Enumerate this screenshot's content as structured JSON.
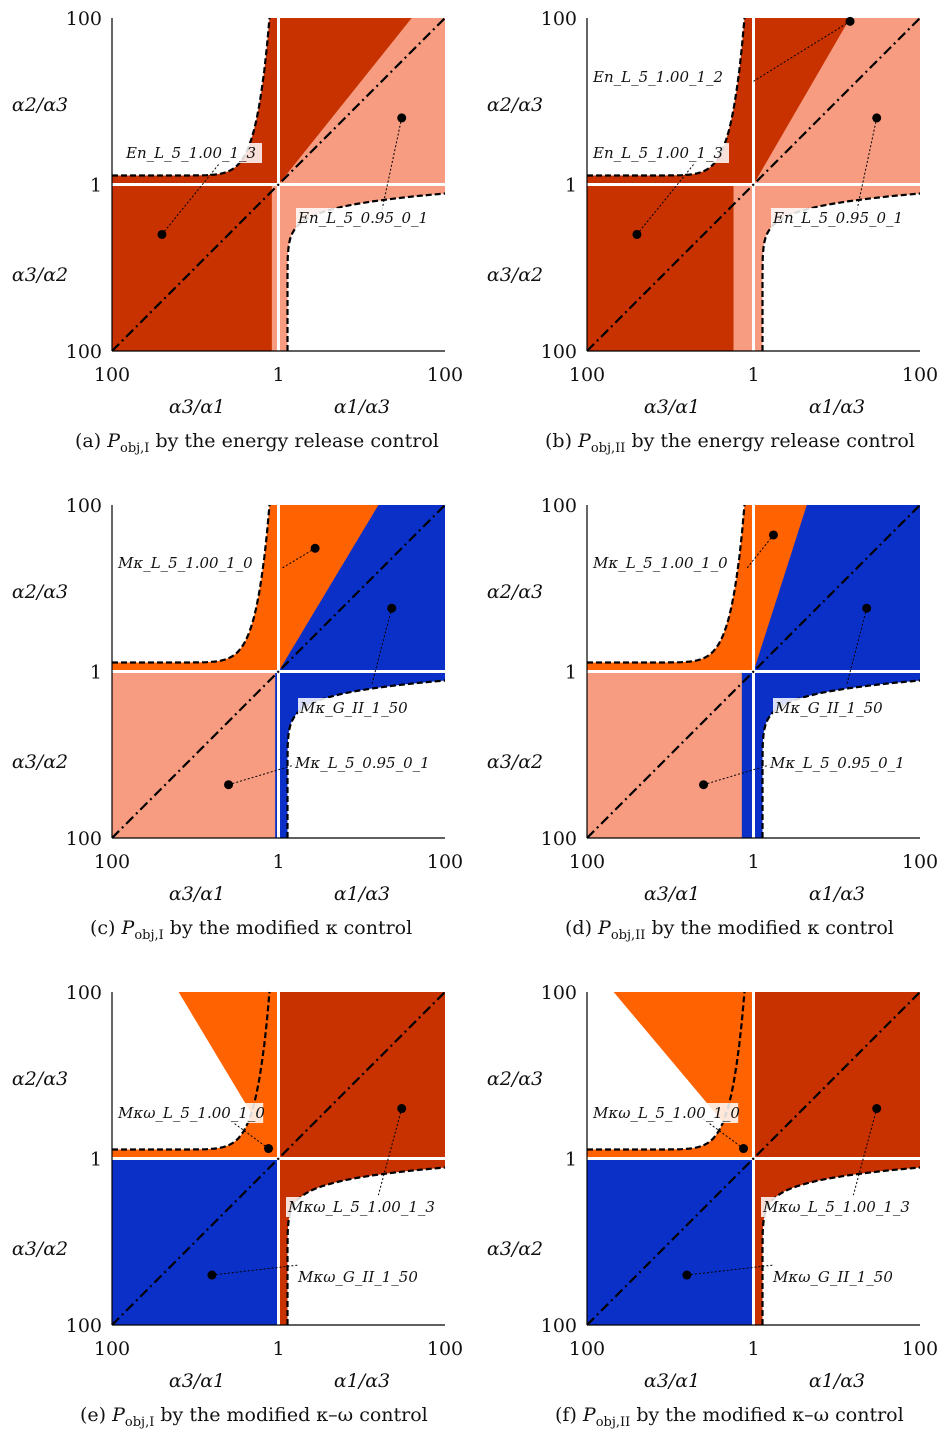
{
  "colors": {
    "dark_red": "#c83200",
    "light_salmon": "#f79c80",
    "orange": "#ff6200",
    "blue": "#0a30c8",
    "white": "#ffffff"
  },
  "panels": [
    {
      "id": "a",
      "caption": "(a)  Pobj,I by the energy release control",
      "caption_prefix": "(a)",
      "caption_sub": "obj,I",
      "caption_rest": "by the energy release control",
      "axes": {
        "y_top": "100",
        "y_mid": "1",
        "y_bottom": "100",
        "x_left": "100",
        "x_mid": "1",
        "x_right": "100",
        "y_upper_label": "α2/α3",
        "y_lower_label": "α3/α2",
        "x_left_label": "α3/α1",
        "x_right_label": "α1/α3"
      },
      "regions": {
        "lower_left": "dark_red",
        "upper_right_top": "dark_red",
        "upper_right_bottom": "light_salmon",
        "sliver": "light_salmon",
        "upper_left_band": "dark_red",
        "lower_right_band": "light_salmon"
      },
      "annotations": [
        {
          "text": "En_L_5_1.00_1_3"
        },
        {
          "text": "En_L_5_0.95_0_1"
        }
      ]
    },
    {
      "id": "b",
      "caption": "(b)  Pobj,II by the energy release control",
      "caption_prefix": "(b)",
      "caption_sub": "obj,II",
      "caption_rest": "by the energy release control",
      "axes": {
        "y_top": "100",
        "y_mid": "1",
        "y_bottom": "100",
        "x_left": "100",
        "x_mid": "1",
        "x_right": "100",
        "y_upper_label": "α2/α3",
        "y_lower_label": "α3/α2",
        "x_left_label": "α3/α1",
        "x_right_label": "α1/α3"
      },
      "regions": {
        "lower_left": "dark_red",
        "upper_right_top": "dark_red",
        "upper_right_bottom": "light_salmon",
        "sliver": "light_salmon",
        "upper_left_band": "dark_red",
        "lower_right_band": "light_salmon"
      },
      "annotations": [
        {
          "text": "En_L_5_1.00_1_2"
        },
        {
          "text": "En_L_5_1.00_1_3"
        },
        {
          "text": "En_L_5_0.95_0_1"
        }
      ]
    },
    {
      "id": "c",
      "caption": "(c)  Pobj,I by the modified κ control",
      "caption_prefix": "(c)",
      "caption_sub": "obj,I",
      "caption_rest": "by the modified κ control",
      "axes": {
        "y_top": "100",
        "y_mid": "1",
        "y_bottom": "100",
        "x_left": "100",
        "x_mid": "1",
        "x_right": "100",
        "y_upper_label": "α2/α3",
        "y_lower_label": "α3/α2",
        "x_left_label": "α3/α1",
        "x_right_label": "α1/α3"
      },
      "regions": {
        "lower_left": "light_salmon",
        "upper_right_top": "orange",
        "upper_right_bottom": "blue",
        "sliver": "blue",
        "upper_left_band": "orange",
        "lower_right_band": "blue"
      },
      "annotations": [
        {
          "text": "Mκ_L_5_1.00_1_0"
        },
        {
          "text": "Mκ_G_II_1_50"
        },
        {
          "text": "Mκ_L_5_0.95_0_1"
        }
      ]
    },
    {
      "id": "d",
      "caption": "(d)  Pobj,II by the modified κ control",
      "caption_prefix": "(d)",
      "caption_sub": "obj,II",
      "caption_rest": "by the modified κ control",
      "axes": {
        "y_top": "100",
        "y_mid": "1",
        "y_bottom": "100",
        "x_left": "100",
        "x_mid": "1",
        "x_right": "100",
        "y_upper_label": "α2/α3",
        "y_lower_label": "α3/α2",
        "x_left_label": "α3/α1",
        "x_right_label": "α1/α3"
      },
      "regions": {
        "lower_left": "light_salmon",
        "upper_right_top": "orange",
        "upper_right_bottom": "blue",
        "sliver": "blue",
        "upper_left_band": "orange",
        "lower_right_band": "blue"
      },
      "annotations": [
        {
          "text": "Mκ_L_5_1.00_1_0"
        },
        {
          "text": "Mκ_G_II_1_50"
        },
        {
          "text": "Mκ_L_5_0.95_0_1"
        }
      ]
    },
    {
      "id": "e",
      "caption": "(e)  Pobj,I by the modified κ–ω control",
      "caption_prefix": "(e)",
      "caption_sub": "obj,I",
      "caption_rest": "by the modified κ–ω control",
      "axes": {
        "y_top": "100",
        "y_mid": "1",
        "y_bottom": "100",
        "x_left": "100",
        "x_mid": "1",
        "x_right": "100",
        "y_upper_label": "α2/α3",
        "y_lower_label": "α3/α2",
        "x_left_label": "α3/α1",
        "x_right_label": "α1/α3"
      },
      "regions": {
        "lower_left": "blue",
        "upper_right_top": "orange",
        "upper_right_bottom": "dark_red",
        "sliver": "blue",
        "upper_left_band": "orange",
        "lower_right_band": "dark_red"
      },
      "annotations": [
        {
          "text": "Mκω_L_5_1.00_1_0"
        },
        {
          "text": "Mκω_L_5_1.00_1_3"
        },
        {
          "text": "Mκω_G_II_1_50"
        }
      ]
    },
    {
      "id": "f",
      "caption": "(f)  Pobj,II by the modified κ–ω control",
      "caption_prefix": "(f)",
      "caption_sub": "obj,II",
      "caption_rest": "by the modified κ–ω control",
      "axes": {
        "y_top": "100",
        "y_mid": "1",
        "y_bottom": "100",
        "x_left": "100",
        "x_mid": "1",
        "x_right": "100",
        "y_upper_label": "α2/α3",
        "y_lower_label": "α3/α2",
        "x_left_label": "α3/α1",
        "x_right_label": "α1/α3"
      },
      "regions": {
        "lower_left": "blue",
        "upper_right_top": "orange",
        "upper_right_bottom": "dark_red",
        "sliver": "blue",
        "upper_left_band": "orange",
        "lower_right_band": "dark_red"
      },
      "annotations": [
        {
          "text": "Mκω_L_5_1.00_1_0"
        },
        {
          "text": "Mκω_L_5_1.00_1_3"
        },
        {
          "text": "Mκω_G_II_1_50"
        }
      ]
    }
  ]
}
